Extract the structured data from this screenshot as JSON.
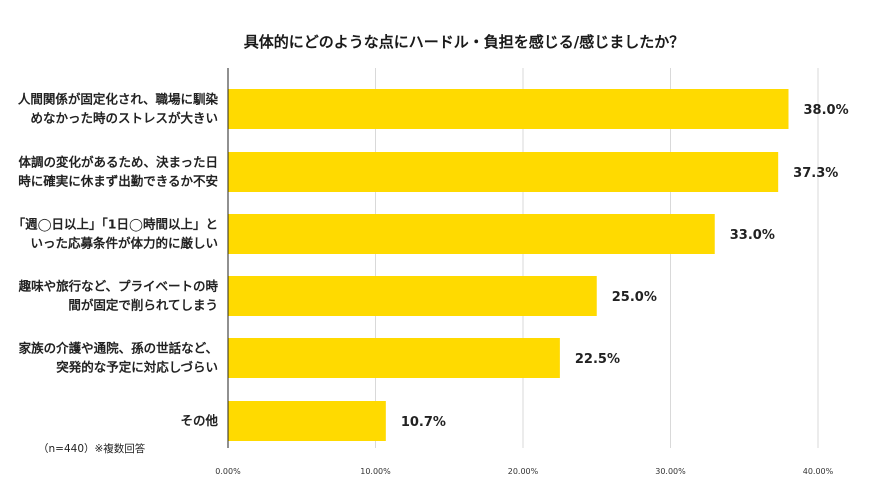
{
  "chart_data": {
    "type": "bar",
    "orientation": "horizontal",
    "title": "具体的にどのような点にハードル・負担を感じる/感じましたか？",
    "categories": [
      [
        "人間関係が固定化され、職場に馴染",
        "めなかった時のストレスが大きい"
      ],
      [
        "体調の変化があるため、決まった日",
        "時に確実に休まず出勤できるか不安"
      ],
      [
        "「週◯日以上」「1日◯時間以上」と",
        "いった応募条件が体力的に厳しい"
      ],
      [
        "趣味や旅行など、プライベートの時",
        "間が固定で削られてしまう"
      ],
      [
        "家族の介護や通院、孫の世話など、",
        "突発的な予定に対応しづらい"
      ],
      [
        "その他"
      ]
    ],
    "values": [
      38.0,
      37.3,
      33.0,
      25.0,
      22.5,
      10.7
    ],
    "value_labels": [
      "38.0%",
      "37.3%",
      "33.0%",
      "25.0%",
      "22.5%",
      "10.7%"
    ],
    "xlim": [
      0,
      40
    ],
    "x_ticks": [
      "0.00%",
      "10.00%",
      "20.00%",
      "30.00%",
      "40.00%"
    ],
    "x_tick_values": [
      0,
      10,
      20,
      30,
      40
    ],
    "bar_color": "#FFDA00",
    "grid": true,
    "note": "（n=440）※複数回答"
  }
}
